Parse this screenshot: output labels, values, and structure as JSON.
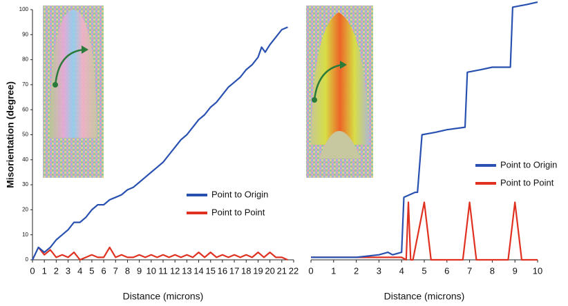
{
  "chart_data": [
    {
      "type": "line",
      "y_label": "Misorientation (degree)",
      "x_label": "Distance (microns)",
      "xlim": [
        0,
        22
      ],
      "xticks": [
        0,
        1,
        2,
        3,
        4,
        5,
        6,
        7,
        8,
        9,
        10,
        11,
        12,
        13,
        14,
        15,
        16,
        17,
        18,
        19,
        20,
        21,
        22
      ],
      "ylim": [
        0,
        100
      ],
      "yticks": [
        0,
        10,
        20,
        30,
        40,
        50,
        60,
        70,
        80,
        90,
        100
      ],
      "series": [
        {
          "name": "Point to Origin",
          "color": "#2850b0",
          "x": [
            0,
            0.5,
            1,
            1.5,
            2,
            2.5,
            3,
            3.5,
            4,
            4.5,
            5,
            5.5,
            6,
            6.5,
            7,
            7.5,
            8,
            8.5,
            9,
            9.5,
            10,
            10.5,
            11,
            11.5,
            12,
            12.5,
            13,
            13.5,
            14,
            14.5,
            15,
            15.5,
            16,
            16.5,
            17,
            17.5,
            18,
            18.5,
            19,
            19.3,
            19.6,
            20,
            20.5,
            21,
            21.5
          ],
          "values": [
            0,
            5,
            3,
            5,
            8,
            10,
            12,
            15,
            15,
            17,
            20,
            22,
            22,
            24,
            25,
            26,
            28,
            29,
            31,
            33,
            35,
            37,
            39,
            42,
            45,
            48,
            50,
            53,
            56,
            58,
            61,
            63,
            66,
            69,
            71,
            73,
            76,
            78,
            81,
            85,
            83,
            86,
            89,
            92,
            93
          ]
        },
        {
          "name": "Point to Point",
          "color": "#e03020",
          "x": [
            0.5,
            1,
            1.5,
            2,
            2.5,
            3,
            3.5,
            4,
            4.5,
            5,
            5.5,
            6,
            6.5,
            7,
            7.5,
            8,
            8.5,
            9,
            9.5,
            10,
            10.5,
            11,
            11.5,
            12,
            12.5,
            13,
            13.5,
            14,
            14.5,
            15,
            15.5,
            16,
            16.5,
            17,
            17.5,
            18,
            18.5,
            19,
            19.5,
            20,
            20.5,
            21,
            21.5
          ],
          "values": [
            5,
            2,
            4,
            1,
            2,
            1,
            3,
            0,
            1,
            2,
            1,
            1,
            5,
            1,
            2,
            1,
            1,
            2,
            1,
            2,
            1,
            2,
            1,
            2,
            1,
            2,
            1,
            3,
            1,
            3,
            1,
            2,
            1,
            2,
            1,
            2,
            1,
            3,
            1,
            3,
            1,
            1,
            0
          ]
        }
      ]
    },
    {
      "type": "line",
      "x_label": "Distance (microns)",
      "xlim": [
        0,
        10
      ],
      "xticks": [
        0,
        1,
        2,
        3,
        4,
        5,
        6,
        7,
        8,
        9,
        10
      ],
      "ylim": [
        0,
        100
      ],
      "series": [
        {
          "name": "Point to Origin",
          "color": "#2850b0",
          "x": [
            0,
            1,
            2,
            3,
            3.4,
            3.6,
            4,
            4.1,
            4.6,
            4.7,
            4.9,
            5.5,
            6,
            6.8,
            6.9,
            7.5,
            8,
            8.8,
            8.9,
            9.5,
            10
          ],
          "values": [
            1,
            1,
            1,
            2,
            3,
            2,
            3,
            25,
            27,
            27,
            50,
            51,
            52,
            53,
            75,
            76,
            77,
            77,
            101,
            102,
            103
          ]
        },
        {
          "name": "Point to Point",
          "color": "#e03020",
          "x": [
            0,
            1,
            2,
            3,
            4,
            4.2,
            4.3,
            4.4,
            4.5,
            5,
            5.3,
            6,
            6.7,
            7,
            7.3,
            8,
            8.7,
            9,
            9.3,
            10
          ],
          "values": [
            1,
            1,
            1,
            1,
            1,
            0,
            23,
            0,
            0,
            23,
            0,
            0,
            0,
            23,
            0,
            0,
            0,
            23,
            0,
            0
          ]
        }
      ]
    }
  ]
}
